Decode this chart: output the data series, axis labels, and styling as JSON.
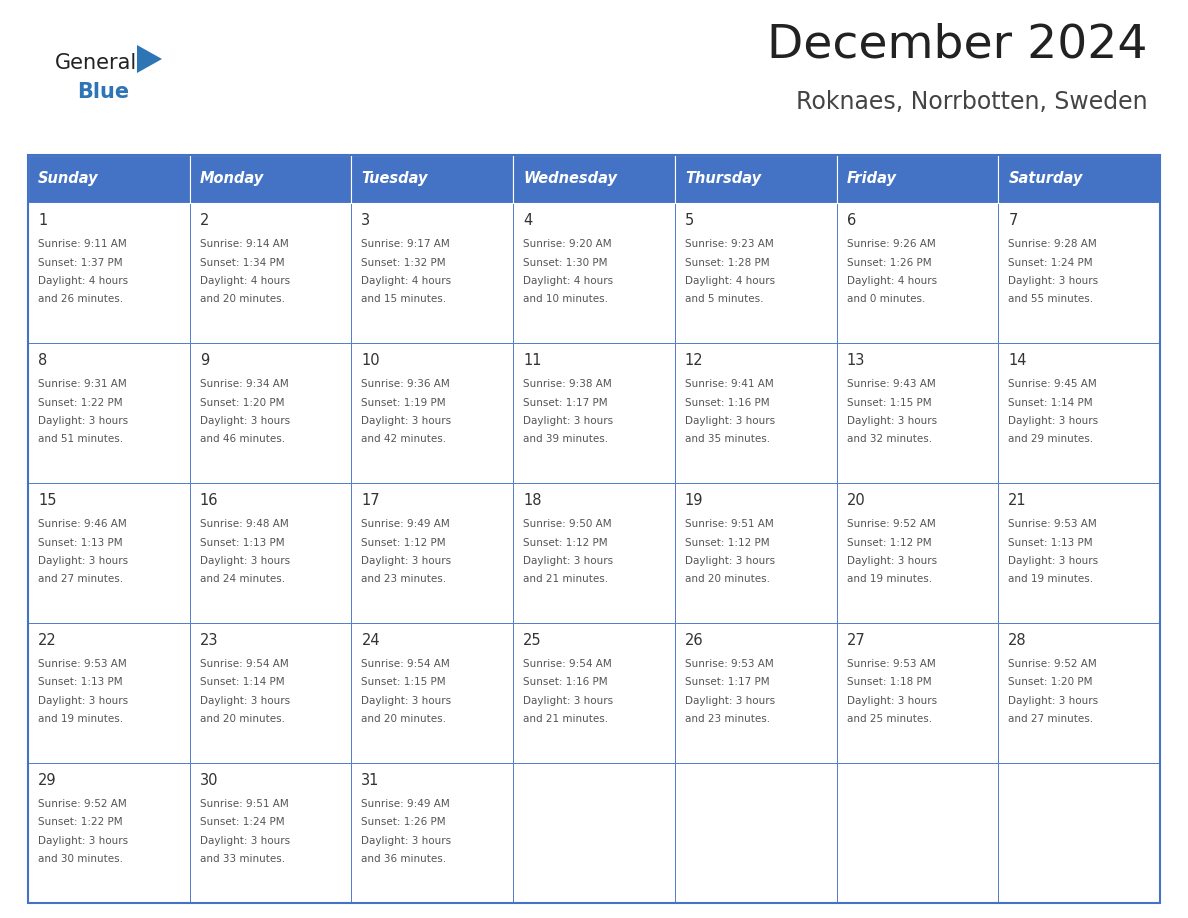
{
  "title": "December 2024",
  "subtitle": "Roknaes, Norrbotten, Sweden",
  "days_of_week": [
    "Sunday",
    "Monday",
    "Tuesday",
    "Wednesday",
    "Thursday",
    "Friday",
    "Saturday"
  ],
  "header_bg": "#4472C4",
  "header_text": "#FFFFFF",
  "border_color": "#4472C4",
  "cell_border_color": "#AAAAAA",
  "day_num_color": "#333333",
  "text_color": "#555555",
  "title_color": "#222222",
  "subtitle_color": "#444444",
  "logo_general_color": "#222222",
  "logo_blue_color": "#2E75B6",
  "calendar": [
    [
      {
        "day": 1,
        "sunrise": "9:11 AM",
        "sunset": "1:37 PM",
        "daylight": "4 hours and 26 minutes"
      },
      {
        "day": 2,
        "sunrise": "9:14 AM",
        "sunset": "1:34 PM",
        "daylight": "4 hours and 20 minutes"
      },
      {
        "day": 3,
        "sunrise": "9:17 AM",
        "sunset": "1:32 PM",
        "daylight": "4 hours and 15 minutes"
      },
      {
        "day": 4,
        "sunrise": "9:20 AM",
        "sunset": "1:30 PM",
        "daylight": "4 hours and 10 minutes"
      },
      {
        "day": 5,
        "sunrise": "9:23 AM",
        "sunset": "1:28 PM",
        "daylight": "4 hours and 5 minutes"
      },
      {
        "day": 6,
        "sunrise": "9:26 AM",
        "sunset": "1:26 PM",
        "daylight": "4 hours and 0 minutes"
      },
      {
        "day": 7,
        "sunrise": "9:28 AM",
        "sunset": "1:24 PM",
        "daylight": "3 hours and 55 minutes"
      }
    ],
    [
      {
        "day": 8,
        "sunrise": "9:31 AM",
        "sunset": "1:22 PM",
        "daylight": "3 hours and 51 minutes"
      },
      {
        "day": 9,
        "sunrise": "9:34 AM",
        "sunset": "1:20 PM",
        "daylight": "3 hours and 46 minutes"
      },
      {
        "day": 10,
        "sunrise": "9:36 AM",
        "sunset": "1:19 PM",
        "daylight": "3 hours and 42 minutes"
      },
      {
        "day": 11,
        "sunrise": "9:38 AM",
        "sunset": "1:17 PM",
        "daylight": "3 hours and 39 minutes"
      },
      {
        "day": 12,
        "sunrise": "9:41 AM",
        "sunset": "1:16 PM",
        "daylight": "3 hours and 35 minutes"
      },
      {
        "day": 13,
        "sunrise": "9:43 AM",
        "sunset": "1:15 PM",
        "daylight": "3 hours and 32 minutes"
      },
      {
        "day": 14,
        "sunrise": "9:45 AM",
        "sunset": "1:14 PM",
        "daylight": "3 hours and 29 minutes"
      }
    ],
    [
      {
        "day": 15,
        "sunrise": "9:46 AM",
        "sunset": "1:13 PM",
        "daylight": "3 hours and 27 minutes"
      },
      {
        "day": 16,
        "sunrise": "9:48 AM",
        "sunset": "1:13 PM",
        "daylight": "3 hours and 24 minutes"
      },
      {
        "day": 17,
        "sunrise": "9:49 AM",
        "sunset": "1:12 PM",
        "daylight": "3 hours and 23 minutes"
      },
      {
        "day": 18,
        "sunrise": "9:50 AM",
        "sunset": "1:12 PM",
        "daylight": "3 hours and 21 minutes"
      },
      {
        "day": 19,
        "sunrise": "9:51 AM",
        "sunset": "1:12 PM",
        "daylight": "3 hours and 20 minutes"
      },
      {
        "day": 20,
        "sunrise": "9:52 AM",
        "sunset": "1:12 PM",
        "daylight": "3 hours and 19 minutes"
      },
      {
        "day": 21,
        "sunrise": "9:53 AM",
        "sunset": "1:13 PM",
        "daylight": "3 hours and 19 minutes"
      }
    ],
    [
      {
        "day": 22,
        "sunrise": "9:53 AM",
        "sunset": "1:13 PM",
        "daylight": "3 hours and 19 minutes"
      },
      {
        "day": 23,
        "sunrise": "9:54 AM",
        "sunset": "1:14 PM",
        "daylight": "3 hours and 20 minutes"
      },
      {
        "day": 24,
        "sunrise": "9:54 AM",
        "sunset": "1:15 PM",
        "daylight": "3 hours and 20 minutes"
      },
      {
        "day": 25,
        "sunrise": "9:54 AM",
        "sunset": "1:16 PM",
        "daylight": "3 hours and 21 minutes"
      },
      {
        "day": 26,
        "sunrise": "9:53 AM",
        "sunset": "1:17 PM",
        "daylight": "3 hours and 23 minutes"
      },
      {
        "day": 27,
        "sunrise": "9:53 AM",
        "sunset": "1:18 PM",
        "daylight": "3 hours and 25 minutes"
      },
      {
        "day": 28,
        "sunrise": "9:52 AM",
        "sunset": "1:20 PM",
        "daylight": "3 hours and 27 minutes"
      }
    ],
    [
      {
        "day": 29,
        "sunrise": "9:52 AM",
        "sunset": "1:22 PM",
        "daylight": "3 hours and 30 minutes"
      },
      {
        "day": 30,
        "sunrise": "9:51 AM",
        "sunset": "1:24 PM",
        "daylight": "3 hours and 33 minutes"
      },
      {
        "day": 31,
        "sunrise": "9:49 AM",
        "sunset": "1:26 PM",
        "daylight": "3 hours and 36 minutes"
      },
      null,
      null,
      null,
      null
    ]
  ],
  "fig_width": 11.88,
  "fig_height": 9.18,
  "dpi": 100
}
